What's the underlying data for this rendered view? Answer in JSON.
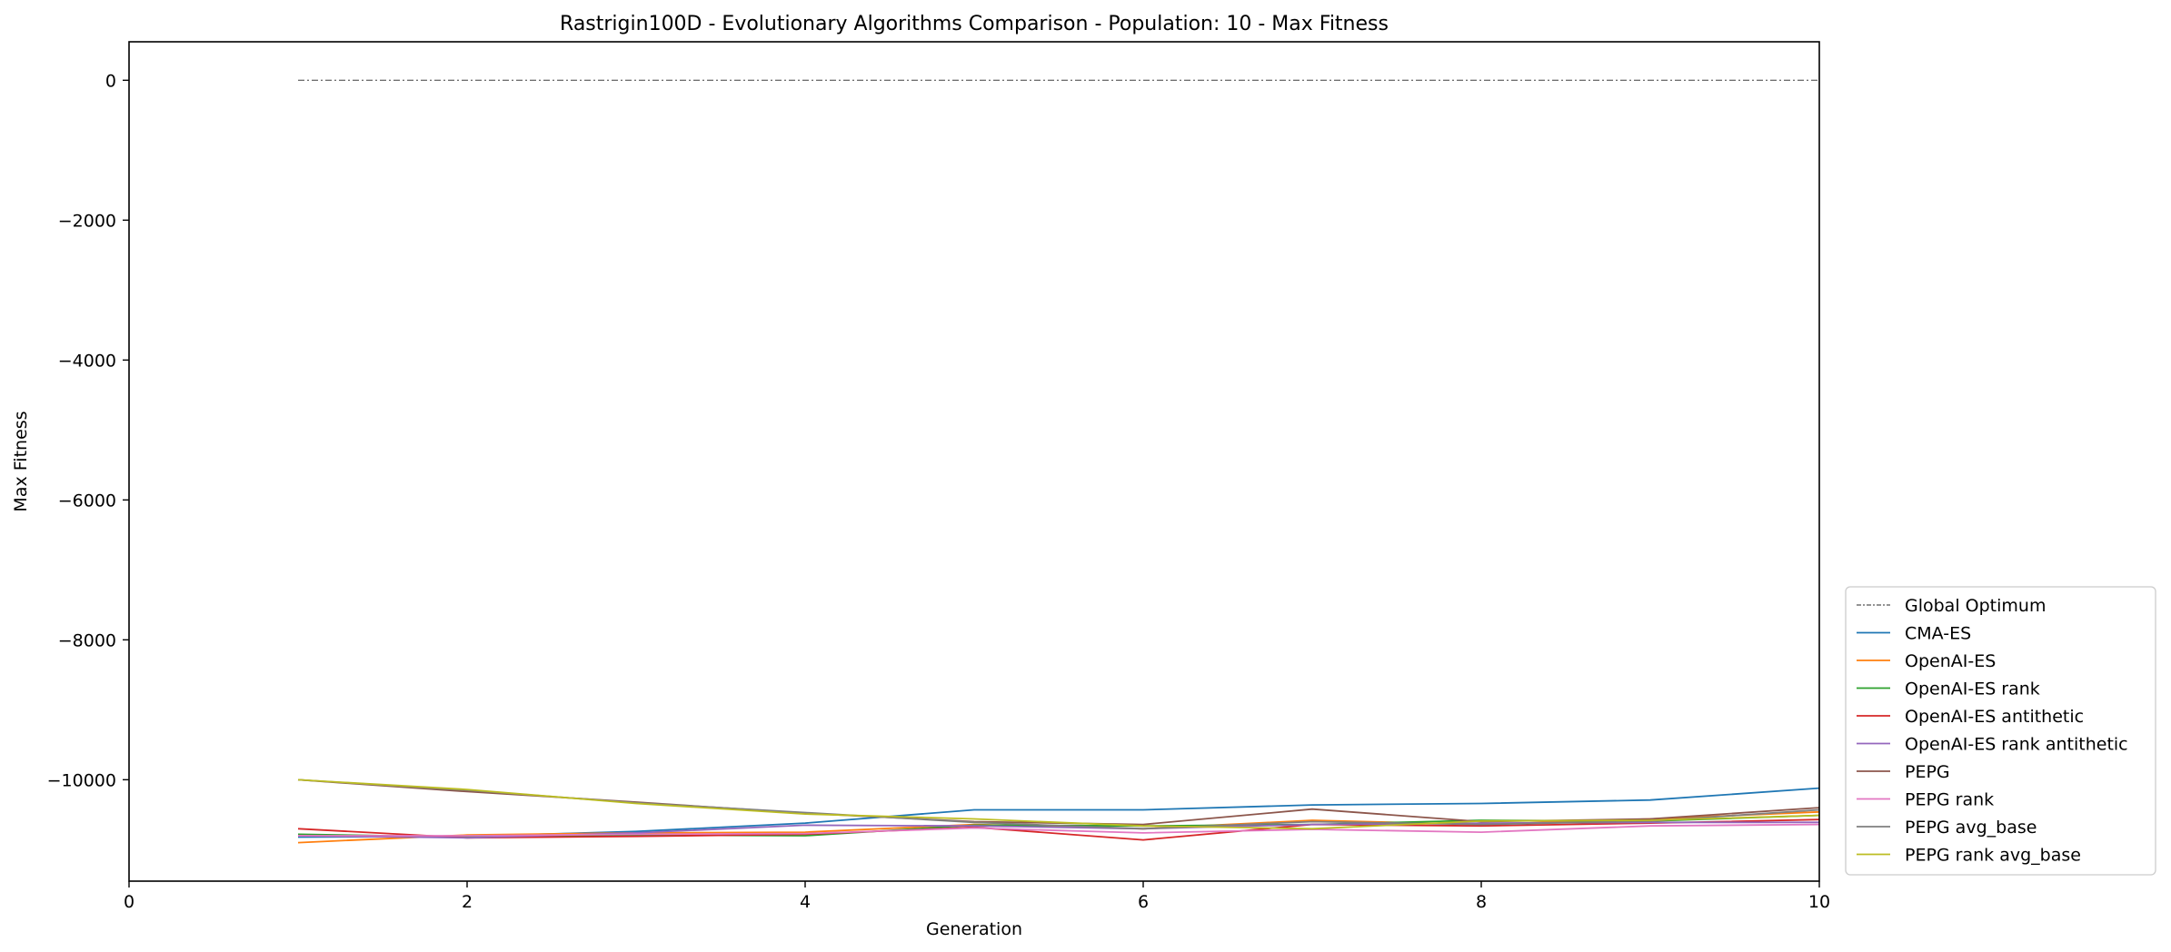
{
  "chart_data": {
    "type": "line",
    "title": "Rastrigin100D - Evolutionary Algorithms Comparison - Population: 10 - Max Fitness",
    "xlabel": "Generation",
    "ylabel": "Max Fitness",
    "xlim": [
      0,
      10
    ],
    "ylim": [
      -11450,
      550
    ],
    "xticks": [
      0,
      2,
      4,
      6,
      8,
      10
    ],
    "yticks": [
      0,
      -2000,
      -4000,
      -6000,
      -8000,
      -10000
    ],
    "xtick_labels": [
      "0",
      "2",
      "4",
      "6",
      "8",
      "10"
    ],
    "ytick_labels": [
      "0",
      "−2000",
      "−4000",
      "−6000",
      "−8000",
      "−10000"
    ],
    "grid": false,
    "legend_position": "bottom-right, outside plot",
    "x": [
      1,
      2,
      3,
      4,
      5,
      6,
      7,
      8,
      9,
      10
    ],
    "series": [
      {
        "name": "Global Optimum",
        "color": "#555555",
        "dashed": true,
        "values": [
          0,
          0,
          0,
          0,
          0,
          0,
          0,
          0,
          0,
          0
        ]
      },
      {
        "name": "CMA-ES",
        "color": "#1f77b4",
        "values": [
          -10820,
          -10810,
          -10740,
          -10620,
          -10430,
          -10430,
          -10360,
          -10340,
          -10290,
          -10120
        ]
      },
      {
        "name": "OpenAI-ES",
        "color": "#ff7f0e",
        "values": [
          -10900,
          -10790,
          -10760,
          -10750,
          -10640,
          -10700,
          -10580,
          -10640,
          -10560,
          -10460
        ]
      },
      {
        "name": "OpenAI-ES rank",
        "color": "#2ca02c",
        "values": [
          -10780,
          -10820,
          -10790,
          -10800,
          -10650,
          -10660,
          -10640,
          -10580,
          -10590,
          -10510
        ]
      },
      {
        "name": "OpenAI-ES antithetic",
        "color": "#d62728",
        "values": [
          -10700,
          -10830,
          -10810,
          -10780,
          -10680,
          -10860,
          -10640,
          -10660,
          -10620,
          -10570
        ]
      },
      {
        "name": "OpenAI-ES rank antithetic",
        "color": "#9467bd",
        "values": [
          -10800,
          -10830,
          -10760,
          -10650,
          -10660,
          -10700,
          -10640,
          -10620,
          -10610,
          -10610
        ]
      },
      {
        "name": "PEPG",
        "color": "#8c564b",
        "values": [
          -10000,
          -10170,
          -10320,
          -10480,
          -10600,
          -10640,
          -10420,
          -10600,
          -10560,
          -10400
        ]
      },
      {
        "name": "PEPG rank",
        "color": "#e377c2",
        "values": [
          -10800,
          -10800,
          -10780,
          -10770,
          -10690,
          -10760,
          -10710,
          -10750,
          -10660,
          -10640
        ]
      },
      {
        "name": "PEPG avg_base",
        "color": "#7f7f7f",
        "values": [
          -10000,
          -10150,
          -10330,
          -10470,
          -10610,
          -10700,
          -10600,
          -10640,
          -10590,
          -10430
        ]
      },
      {
        "name": "PEPG rank avg_base",
        "color": "#bcbd22",
        "values": [
          -10000,
          -10140,
          -10340,
          -10490,
          -10560,
          -10660,
          -10700,
          -10590,
          -10580,
          -10510
        ]
      }
    ]
  }
}
